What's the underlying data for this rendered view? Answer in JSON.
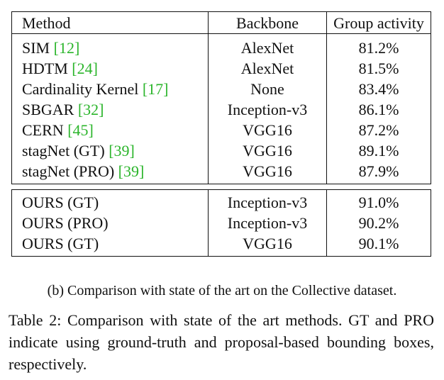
{
  "table": {
    "headers": {
      "method": "Method",
      "backbone": "Backbone",
      "activity": "Group activity"
    },
    "group1": [
      {
        "name": "SIM ",
        "cite": "[12]",
        "backbone": "AlexNet",
        "activity": "81.2%"
      },
      {
        "name": "HDTM ",
        "cite": "[24]",
        "backbone": "AlexNet",
        "activity": "81.5%"
      },
      {
        "name": "Cardinality Kernel ",
        "cite": "[17]",
        "backbone": "None",
        "activity": "83.4%"
      },
      {
        "name": "SBGAR ",
        "cite": "[32]",
        "backbone": "Inception-v3",
        "activity": "86.1%"
      },
      {
        "name": "CERN ",
        "cite": "[45]",
        "backbone": "VGG16",
        "activity": "87.2%"
      },
      {
        "name": "stagNet (GT) ",
        "cite": "[39]",
        "backbone": "VGG16",
        "activity": "89.1%"
      },
      {
        "name": "stagNet (PRO) ",
        "cite": "[39]",
        "backbone": "VGG16",
        "activity": "87.9%"
      }
    ],
    "group2": [
      {
        "name": "OURS (GT)",
        "backbone": "Inception-v3",
        "activity": "91.0%",
        "bold": true
      },
      {
        "name": "OURS (PRO)",
        "backbone": "Inception-v3",
        "activity": "90.2%"
      },
      {
        "name": "OURS (GT)",
        "backbone": "VGG16",
        "activity": "90.1%"
      }
    ]
  },
  "subcaption": "(b) Comparison with state of the art on the Collective dataset.",
  "caption": "Table 2:  Comparison with state of the art methods.  GT and PRO indicate using ground-truth and proposal-based bounding boxes, respectively."
}
